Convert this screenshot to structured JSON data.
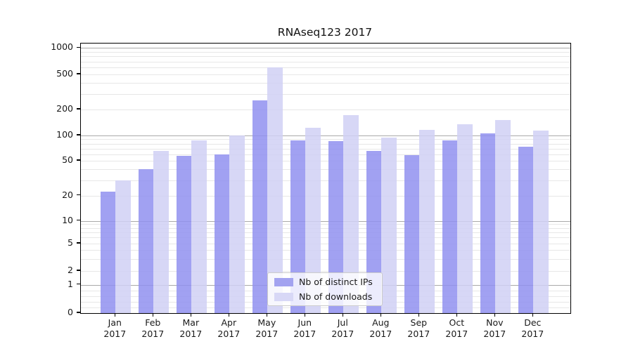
{
  "chart_data": {
    "type": "bar",
    "title": "RNAseq123 2017",
    "categories": [
      "Jan",
      "Feb",
      "Mar",
      "Apr",
      "May",
      "Jun",
      "Jul",
      "Aug",
      "Sep",
      "Oct",
      "Nov",
      "Dec"
    ],
    "category_year": "2017",
    "series": [
      {
        "name": "Nb of distinct IPs",
        "color": "rgba(145,145,240,0.85)",
        "legend_color": "#a3a3f0",
        "values": [
          22,
          40,
          57,
          60,
          255,
          87,
          86,
          66,
          58,
          87,
          105,
          73
        ]
      },
      {
        "name": "Nb of downloads",
        "color": "rgba(208,208,245,0.85)",
        "legend_color": "#d8d8f6",
        "values": [
          30,
          65,
          87,
          100,
          600,
          123,
          173,
          94,
          117,
          136,
          150,
          115
        ]
      }
    ],
    "yscale": "symlog",
    "ylim": [
      0,
      1000
    ],
    "y_ticks": [
      0,
      1,
      2,
      5,
      10,
      20,
      50,
      100,
      200,
      500,
      1000
    ],
    "grid": true,
    "legend_position": "lower center"
  }
}
